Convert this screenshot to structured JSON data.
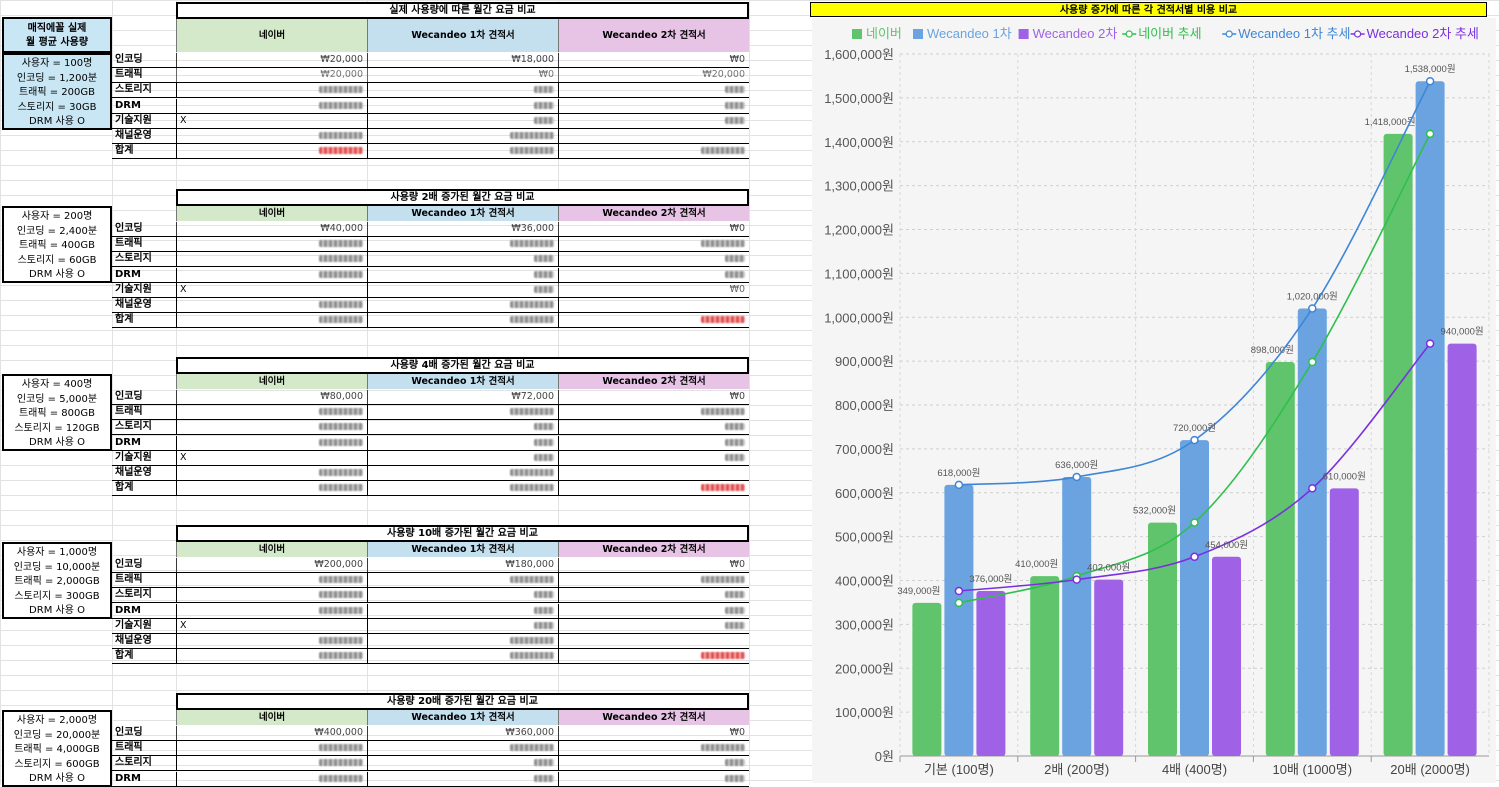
{
  "colors": {
    "naver": "#5fc46b",
    "wc1": "#6aa3df",
    "wc2": "#9f62e6",
    "naver_line": "#2fbf4c",
    "wc1_line": "#3f86d6",
    "wc2_line": "#7b2fe0"
  },
  "usage_header": "매직에꼴 실제\n월 평균 사용량",
  "columns": [
    "네이버",
    "Wecandeo 1차 견적서",
    "Wecandeo 2차 견적서"
  ],
  "row_labels": [
    "인코딩",
    "트래픽",
    "스토리지",
    "DRM",
    "기술지원",
    "채널운영",
    "합계"
  ],
  "tech_support_mark": "X",
  "blocks": [
    {
      "title": "실제 사용량에 따른 월간 요금 비교",
      "usage": [
        "사용자 = 100명",
        "인코딩 = 1,200분",
        "트래픽 = 200GB",
        "스토리지 = 30GB",
        "DRM 사용 O"
      ],
      "encoding": [
        "₩20,000",
        "₩18,000",
        "₩0"
      ],
      "traffic_visible": [
        "₩20,000",
        "₩0",
        "₩20,000"
      ]
    },
    {
      "title": "사용량 2배 증가된 월간 요금 비교",
      "usage": [
        "사용자 = 200명",
        "인코딩 = 2,400분",
        "트래픽 = 400GB",
        "스토리지 = 60GB",
        "DRM 사용 O"
      ],
      "encoding": [
        "₩40,000",
        "₩36,000",
        "₩0"
      ],
      "tech_wc2": "₩0"
    },
    {
      "title": "사용량 4배 증가된 월간 요금 비교",
      "usage": [
        "사용자 = 400명",
        "인코딩 = 5,000분",
        "트래픽 = 800GB",
        "스토리지 = 120GB",
        "DRM 사용 O"
      ],
      "encoding": [
        "₩80,000",
        "₩72,000",
        "₩0"
      ]
    },
    {
      "title": "사용량 10배 증가된 월간 요금 비교",
      "usage": [
        "사용자 = 1,000명",
        "인코딩 = 10,000분",
        "트래픽 = 2,000GB",
        "스토리지 = 300GB",
        "DRM 사용 O"
      ],
      "encoding": [
        "₩200,000",
        "₩180,000",
        "₩0"
      ]
    },
    {
      "title": "사용량 20배 증가된 월간 요금 비교",
      "usage": [
        "사용자 = 2,000명",
        "인코딩 = 20,000분",
        "트래픽 = 4,000GB",
        "스토리지 = 600GB",
        "DRM 사용 O"
      ],
      "encoding": [
        "₩400,000",
        "₩360,000",
        "₩0"
      ]
    }
  ],
  "chart_title": "사용량 증가에 따른 각 견적서별 비용 비교",
  "chart_data": {
    "type": "bar",
    "categories": [
      "기본 (100명)",
      "2배 (200명)",
      "4배 (400명)",
      "10배 (1000명)",
      "20배 (2000명)"
    ],
    "series": [
      {
        "name": "네이버",
        "values": [
          349000,
          410000,
          532000,
          898000,
          1418000
        ]
      },
      {
        "name": "Wecandeo 1차",
        "values": [
          618000,
          636000,
          720000,
          1020000,
          1538000
        ]
      },
      {
        "name": "Wecandeo 2차",
        "values": [
          376000,
          402000,
          454000,
          610000,
          940000
        ]
      }
    ],
    "trend_series": [
      {
        "name": "네이버 추세",
        "values": [
          349000,
          410000,
          532000,
          898000,
          1418000
        ]
      },
      {
        "name": "Wecandeo 1차 추세",
        "values": [
          618000,
          636000,
          720000,
          1020000,
          1538000
        ]
      },
      {
        "name": "Wecandeo 2차 추세",
        "values": [
          376000,
          402000,
          454000,
          610000,
          940000
        ]
      }
    ],
    "data_labels": {
      "naver": [
        "349,000원",
        "410,000원",
        "532,000원",
        "898,000원",
        "1,418,000원"
      ],
      "wc1": [
        "618,000원",
        "636,000원",
        "720,000원",
        "1,020,000원",
        "1,538,000원"
      ],
      "wc2": [
        "376,000원",
        "402,000원",
        "454,000원",
        "610,000원",
        "940,000원"
      ]
    },
    "y_ticks": [
      "0원",
      "100,000원",
      "200,000원",
      "300,000원",
      "400,000원",
      "500,000원",
      "600,000원",
      "700,000원",
      "800,000원",
      "900,000원",
      "1,000,000원",
      "1,100,000원",
      "1,200,000원",
      "1,300,000원",
      "1,400,000원",
      "1,500,000원",
      "1,600,000원"
    ],
    "ylim": [
      0,
      1600000
    ],
    "grid": true,
    "legend": "top"
  }
}
